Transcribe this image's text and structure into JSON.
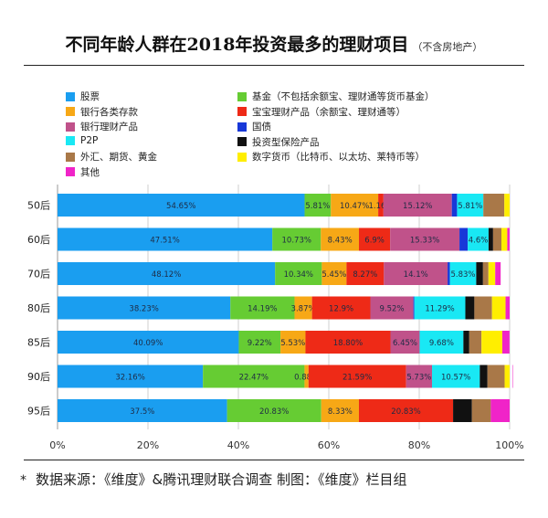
{
  "title": "不同年龄人群在2018年投资最多的理财项目",
  "subtitle": "（不含房地产）",
  "footer": {
    "star": "*",
    "text": "数据来源：《维度》&腾讯理财联合调查   制图：《维度》栏目组"
  },
  "chart_data": {
    "type": "bar",
    "orientation": "horizontal",
    "stacked": true,
    "categories": [
      "50后",
      "60后",
      "70后",
      "80后",
      "85后",
      "90后",
      "95后"
    ],
    "xlim": [
      0,
      100
    ],
    "xticks": [
      "0%",
      "20%",
      "40%",
      "60%",
      "80%",
      "100%"
    ],
    "grid": true,
    "legend_position": "top",
    "series": [
      {
        "name": "股票",
        "color": "#1a9ef0",
        "values": [
          54.65,
          47.51,
          48.12,
          38.23,
          40.09,
          32.16,
          37.5
        ],
        "labels": [
          "54.65%",
          "47.51%",
          "48.12%",
          "38.23%",
          "40.09%",
          "32.16%",
          "37.5%"
        ]
      },
      {
        "name": "基金（不包括余额宝、理财通等货币基金）",
        "color": "#66cc33",
        "values": [
          5.81,
          10.73,
          10.34,
          14.19,
          9.22,
          22.47,
          20.83
        ],
        "labels": [
          "5.81%",
          "10.73%",
          "10.34%",
          "14.19%",
          "9.22%",
          "22.47%",
          "20.83%"
        ]
      },
      {
        "name": "银行各类存款",
        "color": "#f7a816",
        "values": [
          10.47,
          8.43,
          5.45,
          3.87,
          5.53,
          0.88,
          8.33
        ],
        "labels": [
          "10.47%",
          "8.43%",
          "5.45%",
          "3.87%",
          "5.53%",
          "0.88%",
          "8.33%"
        ]
      },
      {
        "name": "宝宝理财产品（余额宝、理财通等）",
        "color": "#ee2a17",
        "values": [
          1.16,
          6.9,
          8.27,
          12.9,
          18.8,
          21.59,
          20.83
        ],
        "labels": [
          "1.16%",
          "6.9%",
          "8.27%",
          "12.9%",
          "18.80%",
          "21.59%",
          "20.83%"
        ]
      },
      {
        "name": "银行理财产品",
        "color": "#c0528a",
        "values": [
          15.12,
          15.33,
          14.1,
          9.52,
          6.45,
          5.73,
          0
        ],
        "labels": [
          "15.12%",
          "15.33%",
          "14.1%",
          "9.52%",
          "6.45%",
          "5.73%",
          ""
        ]
      },
      {
        "name": "国债",
        "color": "#1838d8",
        "values": [
          1.16,
          1.84,
          0.5,
          0.2,
          0,
          0,
          0
        ],
        "labels": [
          "",
          "",
          "",
          "",
          "",
          "",
          ""
        ]
      },
      {
        "name": "P2P",
        "color": "#19e8f4",
        "values": [
          5.81,
          4.6,
          5.83,
          11.29,
          9.68,
          10.57,
          0
        ],
        "labels": [
          "5.81%",
          "4.6%",
          "5.83%",
          "11.29%",
          "9.68%",
          "10.57%",
          ""
        ]
      },
      {
        "name": "投资型保险产品",
        "color": "#111111",
        "values": [
          0,
          1.0,
          1.5,
          2.0,
          1.3,
          1.7,
          4.17
        ],
        "labels": [
          "",
          "",
          "",
          "",
          "",
          "",
          ""
        ]
      },
      {
        "name": "外汇、期货、黄金",
        "color": "#a97848",
        "values": [
          4.65,
          1.84,
          1.2,
          3.9,
          2.7,
          3.8,
          4.17
        ],
        "labels": [
          "",
          "",
          "",
          "",
          "",
          "",
          ""
        ]
      },
      {
        "name": "数字货币（比特币、以太坊、莱特币等）",
        "color": "#ffee00",
        "values": [
          1.17,
          1.3,
          1.5,
          3.0,
          4.6,
          1.8,
          0
        ],
        "labels": [
          "",
          "",
          "",
          "",
          "",
          "",
          ""
        ]
      },
      {
        "name": "其他",
        "color": "#f024c8",
        "values": [
          0,
          0.5,
          1.2,
          0.9,
          1.6,
          1.3,
          4.17
        ],
        "labels": [
          "",
          "",
          "",
          "",
          "",
          "",
          ""
        ]
      }
    ]
  }
}
